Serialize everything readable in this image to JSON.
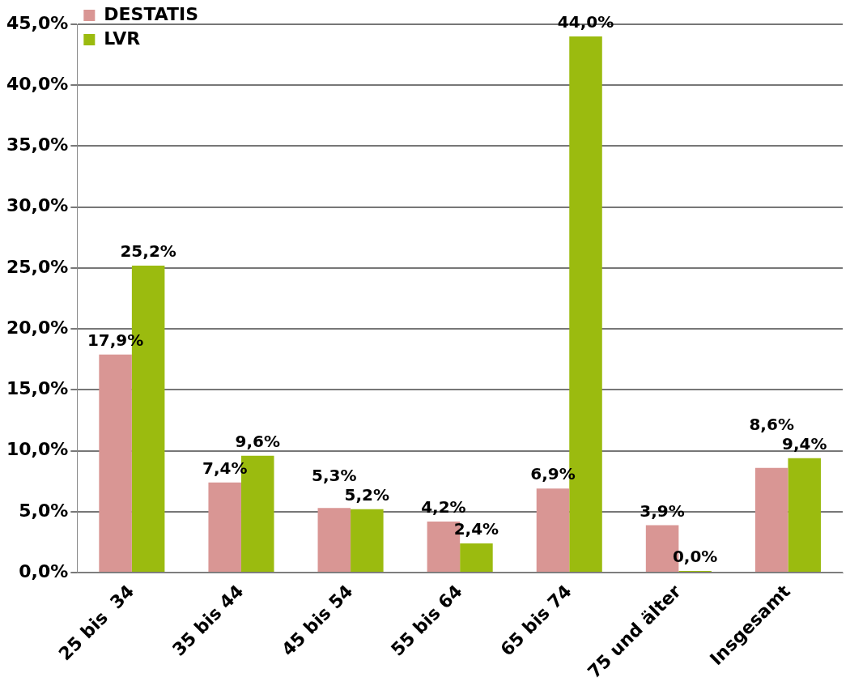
{
  "chart_data": {
    "type": "bar",
    "categories": [
      "25 bis  34",
      "35 bis 44",
      "45 bis 54",
      "55 bis 64",
      "65 bis 74",
      "75 und älter",
      "Insgesamt"
    ],
    "series": [
      {
        "name": "DESTATIS",
        "color": "#d99694",
        "values": [
          17.9,
          7.4,
          5.3,
          4.2,
          6.9,
          3.9,
          8.6
        ],
        "value_labels": [
          "17,9%",
          "7,4%",
          "5,3%",
          "4,2%",
          "6,9%",
          "3,9%",
          "8,6%"
        ]
      },
      {
        "name": "LVR",
        "color": "#9bbb0f",
        "values": [
          25.2,
          9.6,
          5.2,
          2.4,
          44.0,
          0.0,
          9.4
        ],
        "value_labels": [
          "25,2%",
          "9,6%",
          "5,2%",
          "2,4%",
          "44,0%",
          "0,0%",
          "9,4%"
        ]
      }
    ],
    "ylim": [
      0,
      45
    ],
    "yticks": [
      {
        "value": 0,
        "label": "0,0%"
      },
      {
        "value": 5,
        "label": "5,0%"
      },
      {
        "value": 10,
        "label": "10,0%"
      },
      {
        "value": 15,
        "label": "15,0%"
      },
      {
        "value": 20,
        "label": "20,0%"
      },
      {
        "value": 25,
        "label": "25,0%"
      },
      {
        "value": 30,
        "label": "30,0%"
      },
      {
        "value": 35,
        "label": "35,0%"
      },
      {
        "value": 40,
        "label": "40,0%"
      },
      {
        "value": 45,
        "label": "45,0%"
      }
    ],
    "grid": "y",
    "legend": "top left"
  }
}
